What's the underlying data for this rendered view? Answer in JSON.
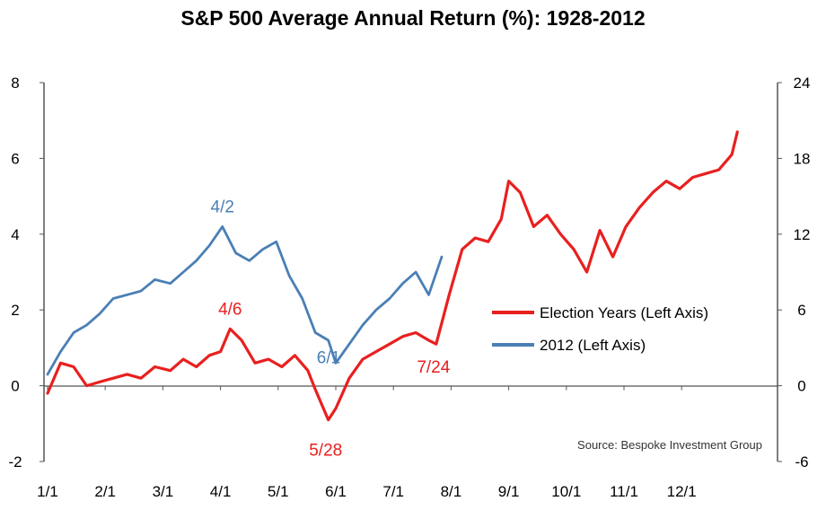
{
  "chart_data": {
    "type": "line",
    "title": "S&P 500 Average Annual Return (%): 1928-2012",
    "x_ticks": [
      "1/1",
      "2/1",
      "3/1",
      "4/1",
      "5/1",
      "6/1",
      "7/1",
      "8/1",
      "9/1",
      "10/1",
      "11/1",
      "12/1"
    ],
    "y_left": {
      "range": [
        -2,
        8
      ],
      "ticks": [
        "-2",
        "0",
        "2",
        "4",
        "6",
        "8"
      ]
    },
    "y_right": {
      "range": [
        -6,
        24
      ],
      "ticks": [
        "-6",
        "0",
        "6",
        "12",
        "18",
        "24"
      ]
    },
    "grid": false,
    "legend_position": "right-center",
    "series": [
      {
        "name": "Election Years (Left Axis)",
        "color": "#e8201f",
        "x": [
          "1/1",
          "1/8",
          "1/15",
          "1/22",
          "1/29",
          "2/5",
          "2/12",
          "2/19",
          "2/26",
          "3/5",
          "3/12",
          "3/19",
          "3/26",
          "4/1",
          "4/6",
          "4/12",
          "4/19",
          "4/26",
          "5/3",
          "5/10",
          "5/17",
          "5/21",
          "5/28",
          "6/1",
          "6/8",
          "6/15",
          "6/22",
          "6/29",
          "7/6",
          "7/13",
          "7/20",
          "7/24",
          "7/31",
          "8/7",
          "8/14",
          "8/21",
          "8/28",
          "9/1",
          "9/7",
          "9/14",
          "9/21",
          "9/28",
          "10/5",
          "10/12",
          "10/19",
          "10/26",
          "11/2",
          "11/9",
          "11/16",
          "11/23",
          "11/30",
          "12/7",
          "12/14",
          "12/21",
          "12/28",
          "12/31"
        ],
        "values": [
          -0.2,
          0.6,
          0.5,
          0.0,
          0.1,
          0.2,
          0.3,
          0.2,
          0.5,
          0.4,
          0.7,
          0.5,
          0.8,
          0.9,
          1.5,
          1.2,
          0.6,
          0.7,
          0.5,
          0.8,
          0.4,
          -0.1,
          -0.9,
          -0.6,
          0.2,
          0.7,
          0.9,
          1.1,
          1.3,
          1.4,
          1.2,
          1.1,
          2.4,
          3.6,
          3.9,
          3.8,
          4.4,
          5.4,
          5.1,
          4.2,
          4.5,
          4.0,
          3.6,
          3.0,
          4.1,
          3.4,
          4.2,
          4.7,
          5.1,
          5.4,
          5.2,
          5.5,
          5.6,
          5.7,
          6.1,
          6.7
        ]
      },
      {
        "name": "2012 (Left Axis)",
        "color": "#4a7fb5",
        "x": [
          "1/1",
          "1/8",
          "1/15",
          "1/22",
          "1/29",
          "2/5",
          "2/12",
          "2/19",
          "2/26",
          "3/5",
          "3/12",
          "3/19",
          "3/26",
          "4/2",
          "4/9",
          "4/16",
          "4/23",
          "4/30",
          "5/7",
          "5/14",
          "5/21",
          "5/28",
          "6/1",
          "6/8",
          "6/15",
          "6/22",
          "6/29",
          "7/6",
          "7/13",
          "7/20",
          "7/27"
        ],
        "values": [
          0.3,
          0.9,
          1.4,
          1.6,
          1.9,
          2.3,
          2.4,
          2.5,
          2.8,
          2.7,
          3.0,
          3.3,
          3.7,
          4.2,
          3.5,
          3.3,
          3.6,
          3.8,
          2.9,
          2.3,
          1.4,
          1.2,
          0.6,
          1.1,
          1.6,
          2.0,
          2.3,
          2.7,
          3.0,
          2.4,
          3.4
        ]
      }
    ],
    "annotations": [
      {
        "text": "4/2",
        "series": "2012 (Left Axis)",
        "x": "4/2",
        "y": 4.2,
        "color": "#4a7fb5"
      },
      {
        "text": "4/6",
        "series": "Election Years (Left Axis)",
        "x": "4/6",
        "y": 1.5,
        "color": "#e8201f"
      },
      {
        "text": "6/1",
        "series": "2012 (Left Axis)",
        "x": "6/1",
        "y": 0.6,
        "color": "#4a7fb5"
      },
      {
        "text": "5/28",
        "series": "Election Years (Left Axis)",
        "x": "5/28",
        "y": -0.9,
        "color": "#e8201f"
      },
      {
        "text": "7/24",
        "series": "Election Years (Left Axis)",
        "x": "7/24",
        "y": 1.1,
        "color": "#e8201f"
      }
    ],
    "source": "Source: Bespoke Investment Group"
  }
}
